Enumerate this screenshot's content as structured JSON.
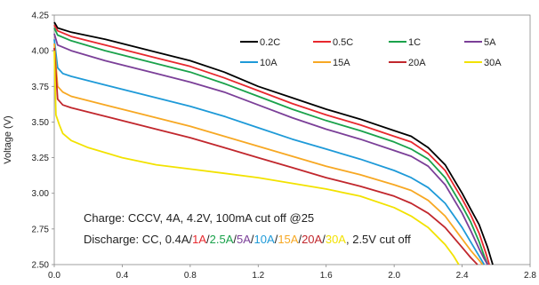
{
  "chart_data": {
    "type": "line",
    "ylabel": "Voltage (V)",
    "xlabel": "",
    "xlim": [
      0,
      2.8
    ],
    "ylim": [
      2.5,
      4.25
    ],
    "xticks": [
      "0.0",
      "0.4",
      "0.8",
      "1.2",
      "1.6",
      "2.0",
      "2.4",
      "2.8"
    ],
    "yticks": [
      "2.50",
      "2.75",
      "3.00",
      "3.25",
      "3.50",
      "3.75",
      "4.00",
      "4.25"
    ],
    "grid": false,
    "legend_position": "top-right",
    "series": [
      {
        "name": "0.2C",
        "color": "#000000",
        "x": [
          0,
          0.02,
          0.1,
          0.3,
          0.6,
          0.8,
          1.0,
          1.2,
          1.4,
          1.6,
          1.8,
          2.0,
          2.1,
          2.2,
          2.3,
          2.4,
          2.45,
          2.5,
          2.55,
          2.58
        ],
        "y": [
          4.2,
          4.16,
          4.13,
          4.08,
          3.99,
          3.93,
          3.85,
          3.75,
          3.67,
          3.59,
          3.52,
          3.44,
          3.4,
          3.32,
          3.2,
          3.0,
          2.89,
          2.78,
          2.62,
          2.5
        ]
      },
      {
        "name": "0.5C",
        "color": "#E8282E",
        "x": [
          0,
          0.02,
          0.1,
          0.3,
          0.6,
          0.8,
          1.0,
          1.2,
          1.4,
          1.6,
          1.8,
          2.0,
          2.1,
          2.2,
          2.3,
          2.4,
          2.45,
          2.5,
          2.54,
          2.56
        ],
        "y": [
          4.18,
          4.14,
          4.1,
          4.04,
          3.95,
          3.89,
          3.81,
          3.72,
          3.63,
          3.55,
          3.48,
          3.4,
          3.36,
          3.28,
          3.16,
          2.96,
          2.85,
          2.72,
          2.58,
          2.5
        ]
      },
      {
        "name": "1C",
        "color": "#1AA24B",
        "x": [
          0,
          0.02,
          0.1,
          0.3,
          0.6,
          0.8,
          1.0,
          1.2,
          1.4,
          1.6,
          1.8,
          2.0,
          2.1,
          2.2,
          2.3,
          2.4,
          2.45,
          2.5,
          2.53,
          2.55
        ],
        "y": [
          4.16,
          4.11,
          4.07,
          4.0,
          3.91,
          3.85,
          3.77,
          3.68,
          3.59,
          3.51,
          3.44,
          3.36,
          3.31,
          3.24,
          3.11,
          2.91,
          2.8,
          2.66,
          2.56,
          2.5
        ]
      },
      {
        "name": "5A",
        "color": "#7B3F98",
        "x": [
          0,
          0.02,
          0.1,
          0.3,
          0.6,
          0.8,
          1.0,
          1.2,
          1.4,
          1.6,
          1.8,
          2.0,
          2.1,
          2.2,
          2.3,
          2.4,
          2.45,
          2.5,
          2.53,
          2.55
        ],
        "y": [
          4.12,
          4.04,
          4.0,
          3.93,
          3.84,
          3.78,
          3.71,
          3.62,
          3.53,
          3.45,
          3.38,
          3.3,
          3.26,
          3.19,
          3.06,
          2.86,
          2.74,
          2.61,
          2.54,
          2.5
        ]
      },
      {
        "name": "10A",
        "color": "#1E9AD8",
        "x": [
          0,
          0.02,
          0.05,
          0.1,
          0.3,
          0.6,
          0.8,
          1.0,
          1.2,
          1.4,
          1.6,
          1.8,
          2.0,
          2.1,
          2.2,
          2.3,
          2.4,
          2.45,
          2.5,
          2.53
        ],
        "y": [
          4.08,
          3.88,
          3.84,
          3.82,
          3.76,
          3.67,
          3.61,
          3.54,
          3.46,
          3.38,
          3.31,
          3.24,
          3.16,
          3.11,
          3.04,
          2.93,
          2.76,
          2.66,
          2.56,
          2.5
        ]
      },
      {
        "name": "15A",
        "color": "#F7A823",
        "x": [
          0,
          0.02,
          0.05,
          0.1,
          0.3,
          0.6,
          0.8,
          1.0,
          1.2,
          1.4,
          1.6,
          1.8,
          2.0,
          2.1,
          2.2,
          2.3,
          2.4,
          2.45,
          2.5,
          2.52
        ],
        "y": [
          4.05,
          3.75,
          3.71,
          3.68,
          3.62,
          3.53,
          3.47,
          3.4,
          3.33,
          3.26,
          3.19,
          3.13,
          3.06,
          3.02,
          2.95,
          2.84,
          2.68,
          2.6,
          2.53,
          2.5
        ]
      },
      {
        "name": "20A",
        "color": "#C1272D",
        "x": [
          0,
          0.02,
          0.05,
          0.1,
          0.3,
          0.6,
          0.8,
          1.0,
          1.2,
          1.4,
          1.6,
          1.8,
          2.0,
          2.1,
          2.2,
          2.3,
          2.4,
          2.45,
          2.49
        ],
        "y": [
          4.02,
          3.66,
          3.62,
          3.6,
          3.54,
          3.45,
          3.39,
          3.32,
          3.25,
          3.18,
          3.11,
          3.05,
          2.98,
          2.93,
          2.86,
          2.76,
          2.62,
          2.55,
          2.5
        ]
      },
      {
        "name": "30A",
        "color": "#F2E200",
        "x": [
          0,
          0.01,
          0.03,
          0.05,
          0.1,
          0.2,
          0.4,
          0.6,
          0.8,
          1.0,
          1.2,
          1.4,
          1.6,
          1.8,
          2.0,
          2.1,
          2.2,
          2.3,
          2.35,
          2.38
        ],
        "y": [
          4.0,
          3.55,
          3.48,
          3.42,
          3.37,
          3.32,
          3.25,
          3.2,
          3.17,
          3.14,
          3.11,
          3.07,
          3.03,
          2.98,
          2.9,
          2.84,
          2.76,
          2.64,
          2.56,
          2.5
        ]
      }
    ],
    "annotations": {
      "charge": "Charge: CCCV,  4A, 4.2V, 100mA cut off @25",
      "discharge_prefix": "Discharge: CC, 0.4A/",
      "discharge_parts": [
        {
          "text": "1A",
          "color": "#E8282E"
        },
        {
          "text": "/",
          "color": "#222222"
        },
        {
          "text": "2.5A",
          "color": "#1AA24B"
        },
        {
          "text": "/",
          "color": "#222222"
        },
        {
          "text": "5A",
          "color": "#7B3F98"
        },
        {
          "text": "/",
          "color": "#222222"
        },
        {
          "text": "10A",
          "color": "#1E9AD8"
        },
        {
          "text": "/",
          "color": "#222222"
        },
        {
          "text": "15A",
          "color": "#F7A823"
        },
        {
          "text": "/",
          "color": "#222222"
        },
        {
          "text": "20A",
          "color": "#C1272D"
        },
        {
          "text": "/",
          "color": "#222222"
        },
        {
          "text": "30A",
          "color": "#F2E200"
        },
        {
          "text": ", 2.5V cut off",
          "color": "#222222"
        }
      ]
    }
  }
}
